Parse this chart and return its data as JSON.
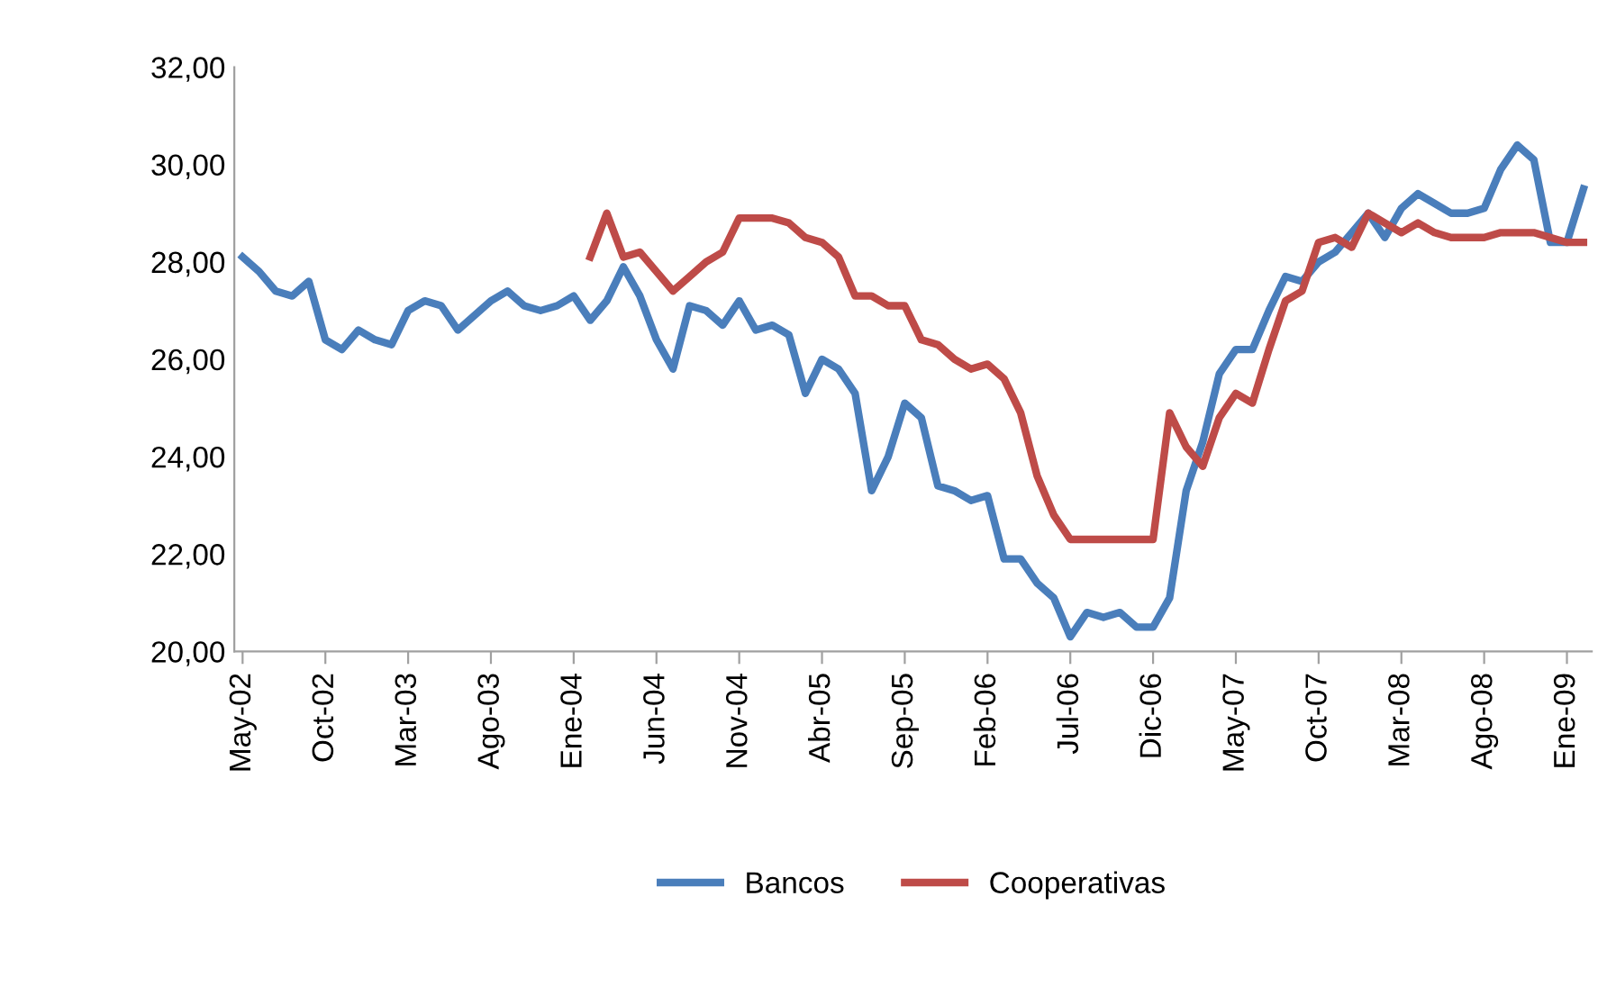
{
  "chart_data": {
    "type": "line",
    "categories": [
      "May-02",
      null,
      null,
      null,
      null,
      "Oct-02",
      null,
      null,
      null,
      null,
      "Mar-03",
      null,
      null,
      null,
      null,
      "Ago-03",
      null,
      null,
      null,
      null,
      "Ene-04",
      null,
      null,
      null,
      null,
      "Jun-04",
      null,
      null,
      null,
      null,
      "Nov-04",
      null,
      null,
      null,
      null,
      "Abr-05",
      null,
      null,
      null,
      null,
      "Sep-05",
      null,
      null,
      null,
      null,
      "Feb-06",
      null,
      null,
      null,
      null,
      "Jul-06",
      null,
      null,
      null,
      null,
      "Dic-06",
      null,
      null,
      null,
      null,
      "May-07",
      null,
      null,
      null,
      null,
      "Oct-07",
      null,
      null,
      null,
      null,
      "Mar-08",
      null,
      null,
      null,
      null,
      "Ago-08",
      null,
      null,
      null,
      null,
      "Ene-09",
      null
    ],
    "series": [
      {
        "name": "Bancos",
        "color": "#4a7ebb",
        "values": [
          28.1,
          27.8,
          27.4,
          27.3,
          27.6,
          26.4,
          26.2,
          26.6,
          26.4,
          26.3,
          27.0,
          27.2,
          27.1,
          26.6,
          26.9,
          27.2,
          27.4,
          27.1,
          27.0,
          27.1,
          27.3,
          26.8,
          27.2,
          27.9,
          27.3,
          26.4,
          25.8,
          27.1,
          27.0,
          26.7,
          27.2,
          26.6,
          26.7,
          26.5,
          25.3,
          26.0,
          25.8,
          25.3,
          23.3,
          24.0,
          25.1,
          24.8,
          23.4,
          23.3,
          23.1,
          23.2,
          21.9,
          21.9,
          21.4,
          21.1,
          20.3,
          20.8,
          20.7,
          20.8,
          20.5,
          20.5,
          21.1,
          23.3,
          24.3,
          25.7,
          26.2,
          26.2,
          27.0,
          27.7,
          27.6,
          28.0,
          28.2,
          28.6,
          29.0,
          28.5,
          29.1,
          29.4,
          29.2,
          29.0,
          29.0,
          29.1,
          29.9,
          30.4,
          30.1,
          28.4,
          28.4,
          29.5
        ]
      },
      {
        "name": "Cooperativas",
        "color": "#be4b48",
        "values": [
          null,
          null,
          null,
          null,
          null,
          null,
          null,
          null,
          null,
          null,
          null,
          null,
          null,
          null,
          null,
          null,
          null,
          null,
          null,
          null,
          null,
          28.1,
          29.0,
          28.1,
          28.2,
          27.8,
          27.4,
          27.7,
          28.0,
          28.2,
          28.9,
          28.9,
          28.9,
          28.8,
          28.5,
          28.4,
          28.1,
          27.3,
          27.3,
          27.1,
          27.1,
          26.4,
          26.3,
          26.0,
          25.8,
          25.9,
          25.6,
          24.9,
          23.6,
          22.8,
          22.3,
          22.3,
          22.3,
          22.3,
          22.3,
          22.3,
          24.9,
          24.2,
          23.8,
          24.8,
          25.3,
          25.1,
          26.2,
          27.2,
          27.4,
          28.4,
          28.5,
          28.3,
          29.0,
          28.8,
          28.6,
          28.8,
          28.6,
          28.5,
          28.5,
          28.5,
          28.6,
          28.6,
          28.6,
          28.5,
          28.4,
          28.4
        ]
      }
    ],
    "ylim": [
      20,
      32
    ],
    "yticks": [
      {
        "value": 20,
        "label": "20,00"
      },
      {
        "value": 22,
        "label": "22,00"
      },
      {
        "value": 24,
        "label": "24,00"
      },
      {
        "value": 26,
        "label": "26,00"
      },
      {
        "value": 28,
        "label": "28,00"
      },
      {
        "value": 30,
        "label": "30,00"
      },
      {
        "value": 32,
        "label": "32,00"
      }
    ],
    "legend": "bottom",
    "grid": false,
    "marker": "none",
    "line_style": "solid"
  }
}
